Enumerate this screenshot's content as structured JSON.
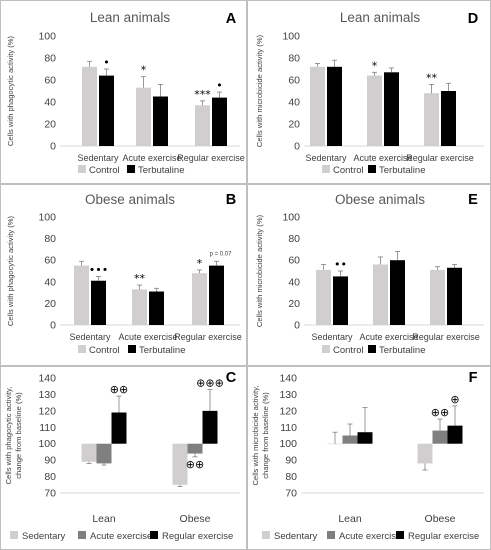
{
  "colors": {
    "control": "#d0cece",
    "terbutaline": "#000000",
    "sedentary": "#d0cece",
    "acute": "#7f7f7f",
    "regular": "#000000",
    "axis": "#d9d9d9",
    "panel_border": "#bfbfbf"
  },
  "chart_data": [
    {
      "id": "A",
      "type": "bar",
      "letter": "A",
      "title": "Lean animals",
      "ylabel": "Cells with phagocytic activity (%)",
      "ylim": [
        0,
        100
      ],
      "yticks": [
        0,
        20,
        40,
        60,
        80,
        100
      ],
      "categories": [
        "Sedentary",
        "Acute exercise",
        "Regular exercise"
      ],
      "series": [
        {
          "name": "Control",
          "color": "#d0cece",
          "values": [
            72,
            53,
            37
          ],
          "errors": [
            5,
            10,
            4
          ],
          "sig": [
            "",
            "*",
            "***"
          ]
        },
        {
          "name": "Terbutaline",
          "color": "#000000",
          "values": [
            64,
            45,
            44
          ],
          "errors": [
            6,
            11,
            5
          ],
          "sig": [
            "•",
            "",
            "•"
          ]
        }
      ],
      "legend": [
        "Control",
        "Terbutaline"
      ]
    },
    {
      "id": "D",
      "type": "bar",
      "letter": "D",
      "title": "Lean animals",
      "ylabel": "Cells with microbicide activity (%)",
      "ylim": [
        0,
        100
      ],
      "yticks": [
        0,
        20,
        40,
        60,
        80,
        100
      ],
      "categories": [
        "Sedentary",
        "Acute exercise",
        "Regular exercise"
      ],
      "series": [
        {
          "name": "Control",
          "color": "#d0cece",
          "values": [
            72,
            64,
            48
          ],
          "errors": [
            3,
            3,
            8
          ],
          "sig": [
            "",
            "*",
            "**"
          ]
        },
        {
          "name": "Terbutaline",
          "color": "#000000",
          "values": [
            72,
            67,
            50
          ],
          "errors": [
            6,
            4,
            7
          ],
          "sig": [
            "",
            "",
            ""
          ]
        }
      ],
      "legend": [
        "Control",
        "Terbutaline"
      ]
    },
    {
      "id": "B",
      "type": "bar",
      "letter": "B",
      "title": "Obese animals",
      "ylabel": "Cells with phagocytic activity (%)",
      "ylim": [
        0,
        100
      ],
      "yticks": [
        0,
        20,
        40,
        60,
        80,
        100
      ],
      "categories": [
        "Sedentary",
        "Acute exercise",
        "Regular exercise"
      ],
      "series": [
        {
          "name": "Control",
          "color": "#d0cece",
          "values": [
            55,
            33,
            48
          ],
          "errors": [
            4,
            4,
            3
          ],
          "sig": [
            "",
            "**",
            "*"
          ]
        },
        {
          "name": "Terbutaline",
          "color": "#000000",
          "values": [
            41,
            31,
            55
          ],
          "errors": [
            4,
            3,
            4
          ],
          "sig": [
            "•••",
            "",
            "p = 0.07"
          ]
        }
      ],
      "legend": [
        "Control",
        "Terbutaline"
      ]
    },
    {
      "id": "E",
      "type": "bar",
      "letter": "E",
      "title": "Obese animals",
      "ylabel": "Cells with microbicide activity (%)",
      "ylim": [
        0,
        100
      ],
      "yticks": [
        0,
        20,
        40,
        60,
        80,
        100
      ],
      "categories": [
        "Sedentary",
        "Acute exercise",
        "Regular exercise"
      ],
      "series": [
        {
          "name": "Control",
          "color": "#d0cece",
          "values": [
            51,
            56,
            51
          ],
          "errors": [
            5,
            7,
            3
          ],
          "sig": [
            "",
            "",
            ""
          ]
        },
        {
          "name": "Terbutaline",
          "color": "#000000",
          "values": [
            45,
            60,
            53
          ],
          "errors": [
            5,
            8,
            3
          ],
          "sig": [
            "••",
            "",
            ""
          ]
        }
      ],
      "legend": [
        "Control",
        "Terbutaline"
      ]
    },
    {
      "id": "C",
      "type": "bar",
      "letter": "C",
      "title": "",
      "ylabel": "Cells with phagocytic activity, change from baseline (%)",
      "ylim": [
        70,
        140
      ],
      "baseline": 100,
      "yticks": [
        70,
        80,
        90,
        100,
        110,
        120,
        130,
        140
      ],
      "categories": [
        "Lean",
        "Obese"
      ],
      "series": [
        {
          "name": "Sedentary",
          "color": "#d0cece",
          "values": [
            89,
            75
          ],
          "errors": [
            1,
            1
          ],
          "sig": [
            "",
            ""
          ]
        },
        {
          "name": "Acute exercise",
          "color": "#7f7f7f",
          "values": [
            88,
            94
          ],
          "errors": [
            1,
            2
          ],
          "sig": [
            "",
            "⊕⊕"
          ]
        },
        {
          "name": "Regular exercise",
          "color": "#000000",
          "values": [
            119,
            120
          ],
          "errors": [
            10,
            13
          ],
          "sig": [
            "⊕⊕",
            "⊕⊕⊕"
          ]
        }
      ],
      "legend": [
        "Sedentary",
        "Acute exercise",
        "Regular exercise"
      ]
    },
    {
      "id": "F",
      "type": "bar",
      "letter": "F",
      "title": "",
      "ylabel": "Cells with microbicide activity, change from baseline (%)",
      "ylim": [
        70,
        140
      ],
      "baseline": 100,
      "yticks": [
        70,
        80,
        90,
        100,
        110,
        120,
        130,
        140
      ],
      "categories": [
        "Lean",
        "Obese"
      ],
      "series": [
        {
          "name": "Sedentary",
          "color": "#d0cece",
          "values": [
            100,
            88
          ],
          "errors": [
            7,
            4
          ],
          "sig": [
            "",
            ""
          ]
        },
        {
          "name": "Acute exercise",
          "color": "#7f7f7f",
          "values": [
            105,
            108
          ],
          "errors": [
            7,
            7
          ],
          "sig": [
            "",
            "⊕⊕"
          ]
        },
        {
          "name": "Regular exercise",
          "color": "#000000",
          "values": [
            107,
            111
          ],
          "errors": [
            15,
            12
          ],
          "sig": [
            "",
            "⊕"
          ]
        }
      ],
      "legend": [
        "Sedentary",
        "Acute exercise",
        "Regular exercise"
      ]
    }
  ]
}
